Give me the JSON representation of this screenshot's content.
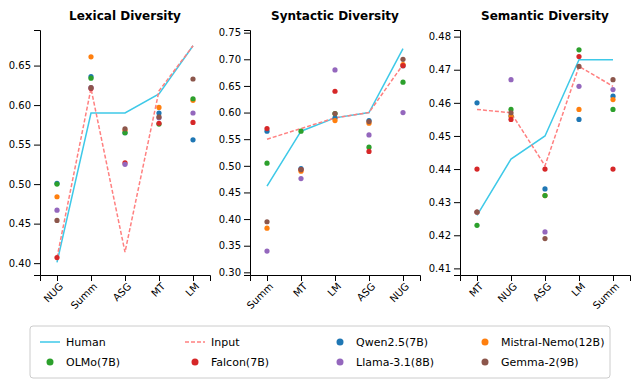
{
  "chart_data": [
    {
      "type": "line",
      "title": "Lexical Diversity",
      "categories": [
        "NUG",
        "Summ",
        "ASG",
        "MT",
        "LM"
      ],
      "ylim": [
        0.385,
        0.695
      ],
      "yticks": [
        {
          "value": 0.4,
          "label": "0.40"
        },
        0.45,
        {
          "value": 0.5,
          "label": "0.50"
        },
        0.55,
        {
          "value": 0.6,
          "label": "0.60"
        },
        0.65
      ],
      "legend": "bottom",
      "series": [
        {
          "name": "Human",
          "type": "line",
          "line_style": "solid",
          "color": "#3ec9e8",
          "values": [
            0.401,
            0.59,
            0.59,
            0.614,
            0.675
          ]
        },
        {
          "name": "Input",
          "type": "line",
          "line_style": "dashed",
          "color": "#ff8080",
          "values": [
            0.407,
            0.621,
            0.414,
            0.618,
            0.675
          ]
        },
        {
          "name": "Qwen2.5(7B)",
          "type": "scatter",
          "marker": "circle",
          "color": "#1f77b4",
          "values": [
            0.501,
            0.636,
            0.565,
            0.59,
            0.556
          ]
        },
        {
          "name": "Mistral-Nemo(12B)",
          "type": "scatter",
          "marker": "circle",
          "color": "#ff7f0e",
          "values": [
            0.484,
            0.661,
            0.568,
            0.597,
            0.606
          ]
        },
        {
          "name": "OLMo(7B)",
          "type": "scatter",
          "marker": "circle",
          "color": "#2ca02c",
          "values": [
            0.5,
            0.634,
            0.565,
            0.576,
            0.608
          ]
        },
        {
          "name": "Falcon(7B)",
          "type": "scatter",
          "marker": "circle",
          "color": "#d62728",
          "values": [
            0.407,
            0.621,
            0.527,
            0.577,
            0.578
          ]
        },
        {
          "name": "Llama-3.1(8B)",
          "type": "scatter",
          "marker": "circle",
          "color": "#9467bd",
          "values": [
            0.467,
            0.622,
            0.525,
            0.584,
            0.59
          ]
        },
        {
          "name": "Gemma-2(9B)",
          "type": "scatter",
          "marker": "circle",
          "color": "#8c564b",
          "values": [
            0.454,
            0.622,
            0.57,
            0.585,
            0.633
          ]
        }
      ]
    },
    {
      "type": "line",
      "title": "Syntactic Diversity",
      "categories": [
        "Summ",
        "MT",
        "LM",
        "ASG",
        "NUG"
      ],
      "ylim": [
        0.295,
        0.755
      ],
      "yticks": [
        {
          "value": 0.3,
          "label": "0.30"
        },
        0.35,
        {
          "value": 0.4,
          "label": "0.40"
        },
        0.45,
        {
          "value": 0.5,
          "label": "0.50"
        },
        0.55,
        {
          "value": 0.6,
          "label": "0.60"
        },
        0.65,
        {
          "value": 0.7,
          "label": "0.70"
        },
        0.75
      ],
      "series": [
        {
          "name": "Human",
          "type": "line",
          "line_style": "solid",
          "color": "#3ec9e8",
          "values": [
            0.462,
            0.565,
            0.59,
            0.6,
            0.72
          ]
        },
        {
          "name": "Input",
          "type": "line",
          "line_style": "dashed",
          "color": "#ff8080",
          "values": [
            0.55,
            0.57,
            0.59,
            0.6,
            0.69
          ]
        },
        {
          "name": "Qwen2.5(7B)",
          "type": "scatter",
          "marker": "circle",
          "color": "#1f77b4",
          "values": [
            0.565,
            0.495,
            0.59,
            0.585,
            0.688
          ]
        },
        {
          "name": "Mistral-Nemo(12B)",
          "type": "scatter",
          "marker": "circle",
          "color": "#ff7f0e",
          "values": [
            0.383,
            0.49,
            0.585,
            0.58,
            0.69
          ]
        },
        {
          "name": "OLMo(7B)",
          "type": "scatter",
          "marker": "circle",
          "color": "#2ca02c",
          "values": [
            0.505,
            0.565,
            0.598,
            0.535,
            0.657
          ]
        },
        {
          "name": "Falcon(7B)",
          "type": "scatter",
          "marker": "circle",
          "color": "#d62728",
          "values": [
            0.57,
            0.493,
            0.64,
            0.527,
            0.688
          ]
        },
        {
          "name": "Llama-3.1(8B)",
          "type": "scatter",
          "marker": "circle",
          "color": "#9467bd",
          "values": [
            0.34,
            0.476,
            0.68,
            0.558,
            0.6
          ]
        },
        {
          "name": "Gemma-2(9B)",
          "type": "scatter",
          "marker": "circle",
          "color": "#8c564b",
          "values": [
            0.395,
            0.493,
            0.598,
            0.583,
            0.7
          ]
        }
      ]
    },
    {
      "type": "line",
      "title": "Semantic Diversity",
      "categories": [
        "MT",
        "NUG",
        "ASG",
        "LM",
        "Summ"
      ],
      "ylim": [
        0.408,
        0.482
      ],
      "yticks": [
        0.41,
        0.42,
        0.43,
        0.44,
        0.45,
        0.46,
        0.47,
        0.48
      ],
      "series": [
        {
          "name": "Human",
          "type": "line",
          "line_style": "solid",
          "color": "#3ec9e8",
          "values": [
            0.426,
            0.443,
            0.45,
            0.473,
            0.473
          ]
        },
        {
          "name": "Input",
          "type": "line",
          "line_style": "dashed",
          "color": "#ff8080",
          "values": [
            0.458,
            0.457,
            0.441,
            0.471,
            0.465
          ]
        },
        {
          "name": "Qwen2.5(7B)",
          "type": "scatter",
          "marker": "circle",
          "color": "#1f77b4",
          "values": [
            0.46,
            0.456,
            0.434,
            0.455,
            0.462
          ]
        },
        {
          "name": "Mistral-Nemo(12B)",
          "type": "scatter",
          "marker": "circle",
          "color": "#ff7f0e",
          "values": [
            0.427,
            0.456,
            0.432,
            0.458,
            0.461
          ]
        },
        {
          "name": "OLMo(7B)",
          "type": "scatter",
          "marker": "circle",
          "color": "#2ca02c",
          "values": [
            0.423,
            0.458,
            0.432,
            0.476,
            0.458
          ]
        },
        {
          "name": "Falcon(7B)",
          "type": "scatter",
          "marker": "circle",
          "color": "#d62728",
          "values": [
            0.44,
            0.455,
            0.44,
            0.474,
            0.44
          ]
        },
        {
          "name": "Llama-3.1(8B)",
          "type": "scatter",
          "marker": "circle",
          "color": "#9467bd",
          "values": [
            0.427,
            0.467,
            0.421,
            0.465,
            0.464
          ]
        },
        {
          "name": "Gemma-2(9B)",
          "type": "scatter",
          "marker": "circle",
          "color": "#8c564b",
          "values": [
            0.427,
            0.457,
            0.419,
            0.471,
            0.467
          ]
        }
      ]
    }
  ]
}
